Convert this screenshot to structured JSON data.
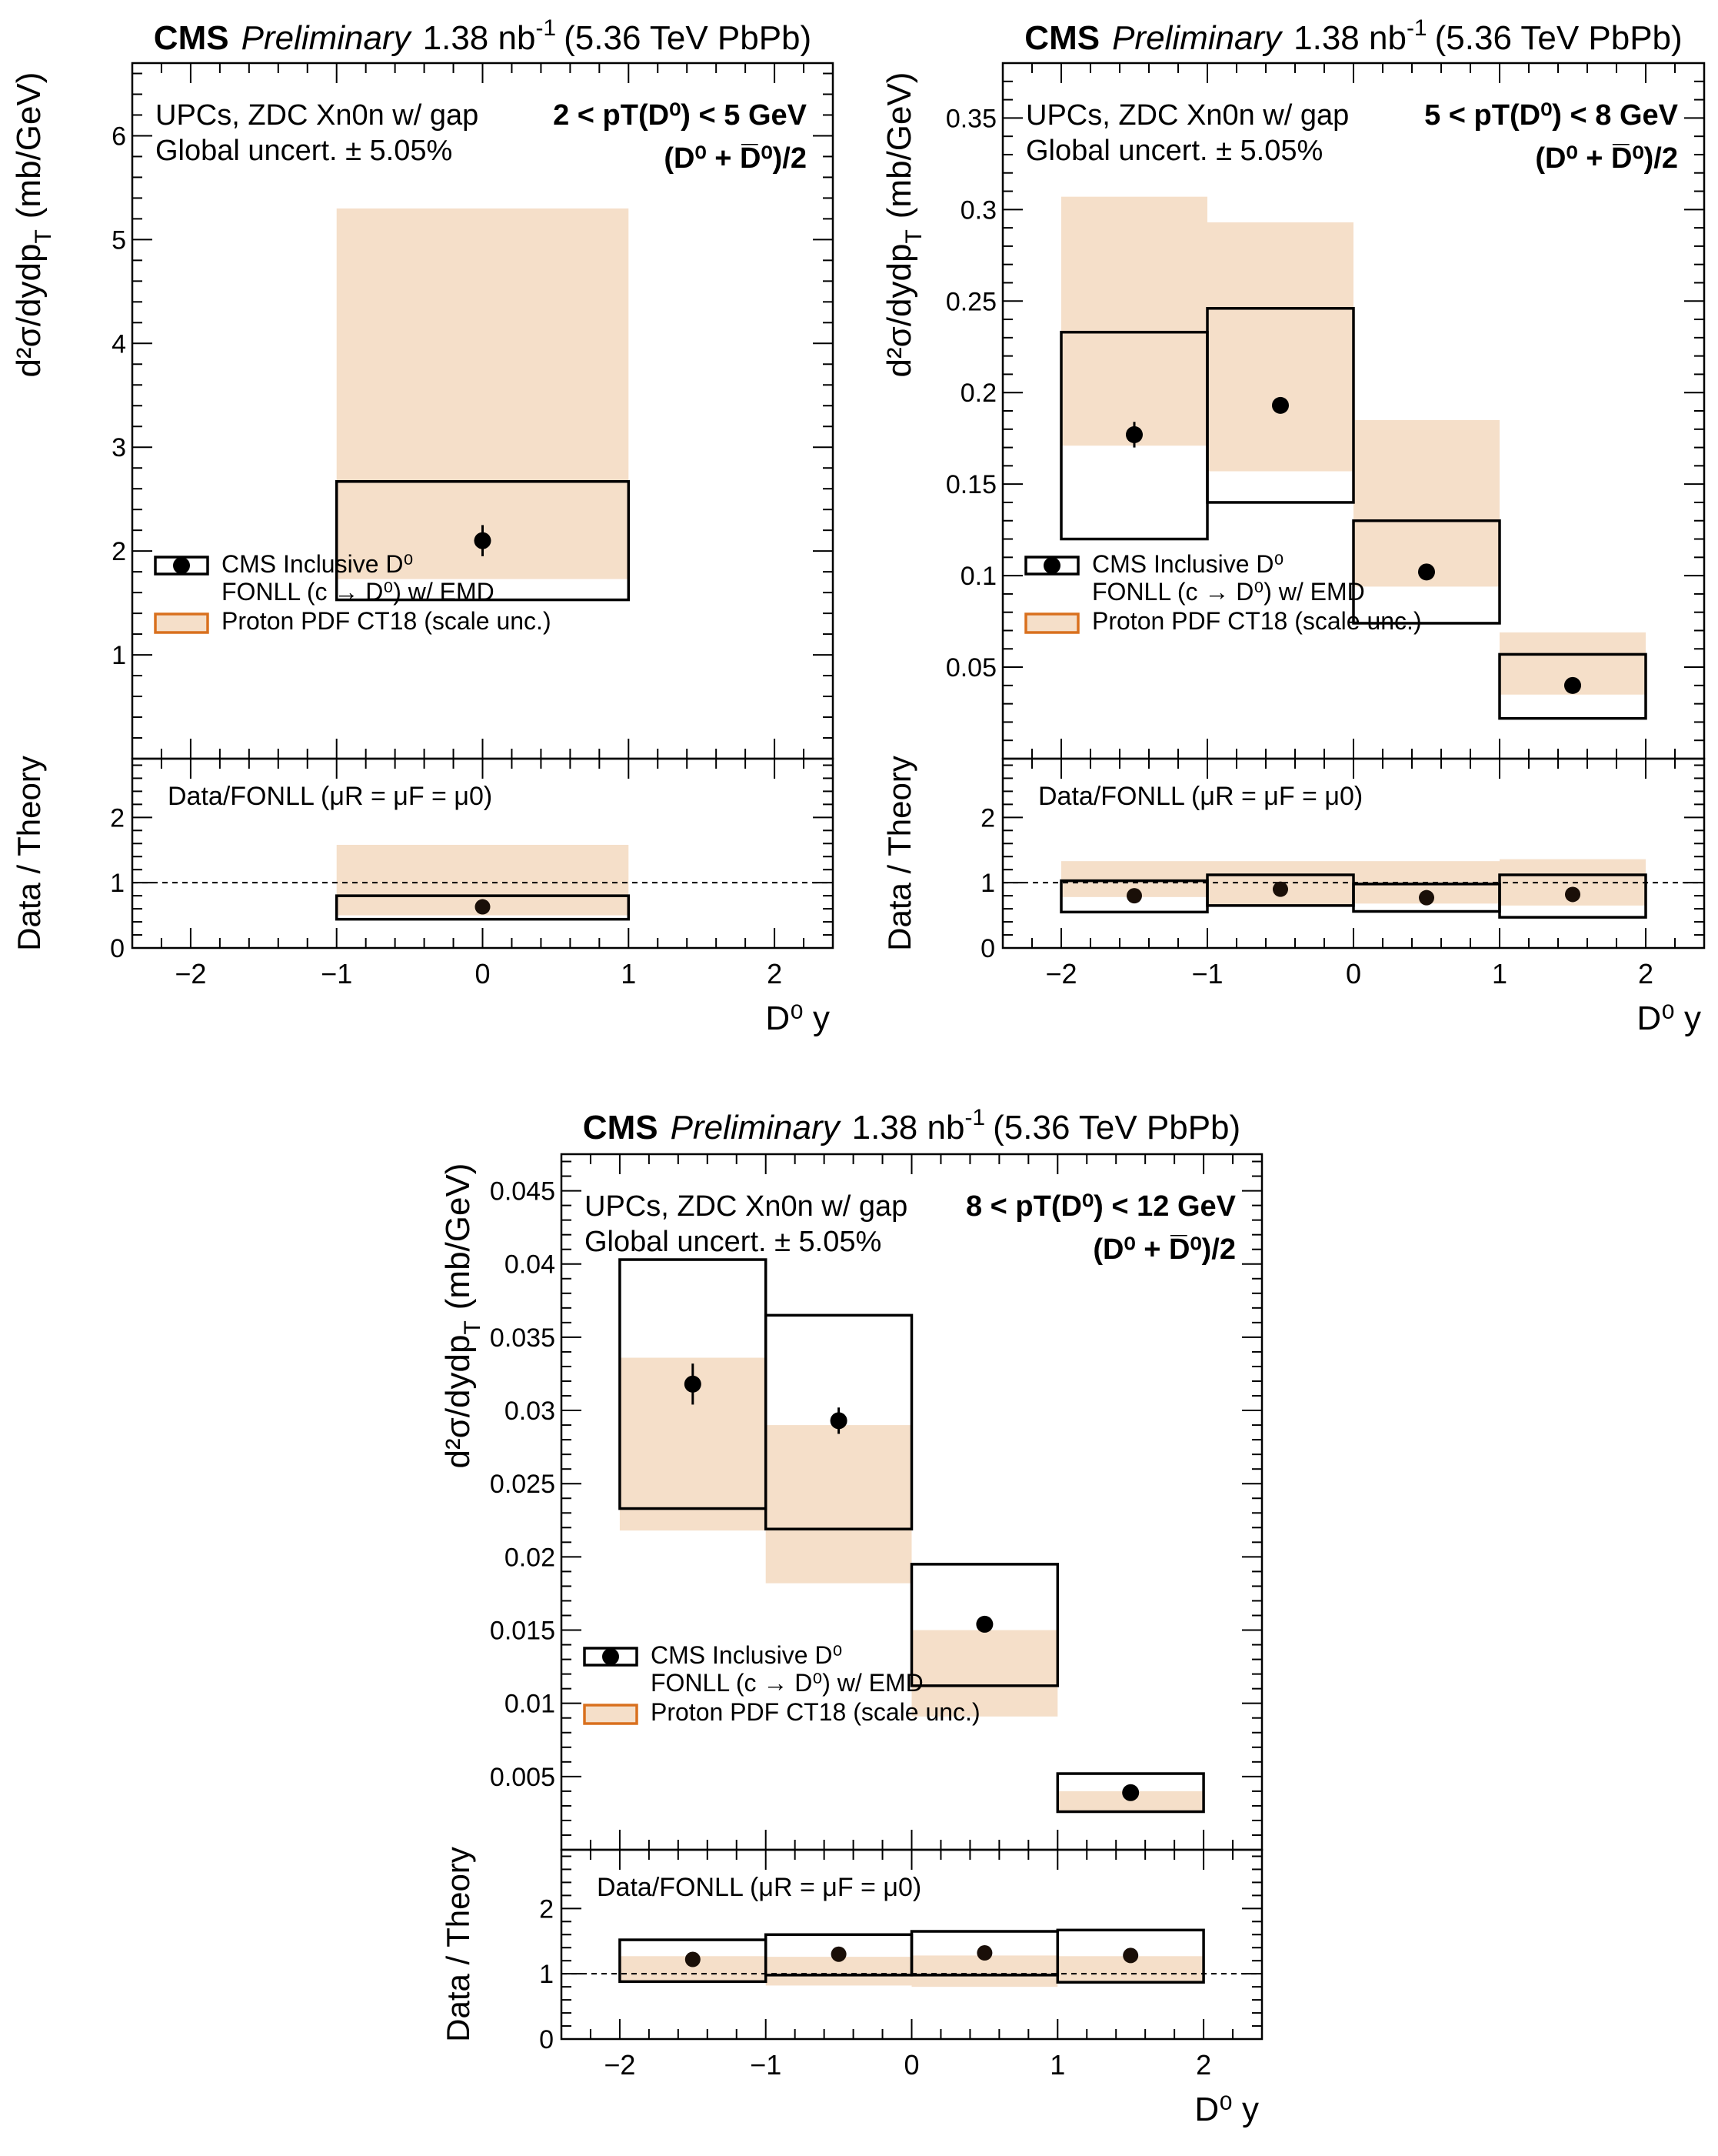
{
  "header": {
    "cms": "CMS",
    "preliminary": "Preliminary",
    "lumi": "1.38 nb",
    "lumi_exp": "-1",
    "energy": "(5.36 TeV PbPb)"
  },
  "common": {
    "info_line1": "UPCs, ZDC Xn0n w/ gap",
    "info_line2": "Global uncert. ± 5.05%",
    "species": "(D⁰ + D̅⁰)/2",
    "ylabel_top": "d²σ/dydp",
    "ylabel_top_sub": "T",
    "ylabel_top_unit": "(mb/GeV)",
    "ylabel_ratio": "Data / Theory",
    "xlabel": "D⁰ y",
    "ratio_label": "Data/FONLL (μR = μF = μ0)",
    "legend": {
      "data": "CMS Inclusive D⁰",
      "fonll": "FONLL (c → D⁰) w/ EMD",
      "pdf": "Proton PDF CT18 (scale unc.)"
    },
    "colors": {
      "band": "#f5dfc9",
      "band_edge": "#d9701e",
      "box": "#000000",
      "marker": "#000000"
    }
  },
  "chart_data": [
    {
      "type": "scatter",
      "pt_label": "2 < pT(D⁰) < 5 GeV",
      "xlim": [
        -2.4,
        2.4
      ],
      "xticks": [
        -2,
        -1,
        0,
        1,
        2
      ],
      "ylim": [
        0,
        6.7
      ],
      "yticks": [
        1,
        2,
        3,
        4,
        5,
        6
      ],
      "ratio_ylim": [
        0,
        2.9
      ],
      "ratio_yticks": [
        0,
        1,
        2
      ],
      "bins": [
        {
          "xlo": -1,
          "xhi": 1,
          "x": 0,
          "y": 2.1,
          "yerr": 0.15,
          "box": [
            1.53,
            2.67
          ],
          "band": [
            1.73,
            5.3
          ],
          "ratio": 0.63,
          "ratio_box": [
            0.44,
            0.8
          ],
          "ratio_band": [
            0.5,
            1.58
          ]
        }
      ]
    },
    {
      "type": "scatter",
      "pt_label": "5 < pT(D⁰) < 8 GeV",
      "xlim": [
        -2.4,
        2.4
      ],
      "xticks": [
        -2,
        -1,
        0,
        1,
        2
      ],
      "ylim": [
        0,
        0.38
      ],
      "yticks": [
        0.05,
        0.1,
        0.15,
        0.2,
        0.25,
        0.3,
        0.35
      ],
      "ratio_ylim": [
        0,
        2.9
      ],
      "ratio_yticks": [
        0,
        1,
        2
      ],
      "bins": [
        {
          "xlo": -2,
          "xhi": -1,
          "x": -1.5,
          "y": 0.177,
          "yerr": 0.007,
          "box": [
            0.12,
            0.233
          ],
          "band": [
            0.171,
            0.307
          ],
          "ratio": 0.8,
          "ratio_box": [
            0.55,
            1.03
          ],
          "ratio_band": [
            0.78,
            1.33
          ]
        },
        {
          "xlo": -1,
          "xhi": 0,
          "x": -0.5,
          "y": 0.193,
          "yerr": 0.004,
          "box": [
            0.14,
            0.246
          ],
          "band": [
            0.157,
            0.293
          ],
          "ratio": 0.9,
          "ratio_box": [
            0.65,
            1.12
          ],
          "ratio_band": [
            0.65,
            1.33
          ]
        },
        {
          "xlo": 0,
          "xhi": 1,
          "x": 0.5,
          "y": 0.102,
          "yerr": 0.002,
          "box": [
            0.074,
            0.13
          ],
          "band": [
            0.094,
            0.185
          ],
          "ratio": 0.77,
          "ratio_box": [
            0.56,
            0.98
          ],
          "ratio_band": [
            0.68,
            1.33
          ]
        },
        {
          "xlo": 1,
          "xhi": 2,
          "x": 1.5,
          "y": 0.04,
          "yerr": 0.001,
          "box": [
            0.022,
            0.057
          ],
          "band": [
            0.035,
            0.069
          ],
          "ratio": 0.82,
          "ratio_box": [
            0.47,
            1.12
          ],
          "ratio_band": [
            0.65,
            1.36
          ]
        }
      ]
    },
    {
      "type": "scatter",
      "pt_label": "8 < pT(D⁰) < 12 GeV",
      "xlim": [
        -2.4,
        2.4
      ],
      "xticks": [
        -2,
        -1,
        0,
        1,
        2
      ],
      "ylim": [
        0,
        0.0475
      ],
      "yticks": [
        0.005,
        0.01,
        0.015,
        0.02,
        0.025,
        0.03,
        0.035,
        0.04,
        0.045
      ],
      "ratio_ylim": [
        0,
        2.9
      ],
      "ratio_yticks": [
        0,
        1,
        2
      ],
      "bins": [
        {
          "xlo": -2,
          "xhi": -1,
          "x": -1.5,
          "y": 0.0318,
          "yerr": 0.0014,
          "box": [
            0.0233,
            0.0403
          ],
          "band": [
            0.0218,
            0.0336
          ],
          "ratio": 1.22,
          "ratio_box": [
            0.88,
            1.52
          ],
          "ratio_band": [
            0.88,
            1.27
          ]
        },
        {
          "xlo": -1,
          "xhi": 0,
          "x": -0.5,
          "y": 0.0293,
          "yerr": 0.0009,
          "box": [
            0.0219,
            0.0365
          ],
          "band": [
            0.0182,
            0.029
          ],
          "ratio": 1.3,
          "ratio_box": [
            0.98,
            1.6
          ],
          "ratio_band": [
            0.82,
            1.26
          ]
        },
        {
          "xlo": 0,
          "xhi": 1,
          "x": 0.5,
          "y": 0.0154,
          "yerr": 0.0005,
          "box": [
            0.0112,
            0.0195
          ],
          "band": [
            0.0091,
            0.015
          ],
          "ratio": 1.32,
          "ratio_box": [
            0.98,
            1.65
          ],
          "ratio_band": [
            0.8,
            1.28
          ]
        },
        {
          "xlo": 1,
          "xhi": 2,
          "x": 1.5,
          "y": 0.0039,
          "yerr": 0.0002,
          "box": [
            0.0026,
            0.0052
          ],
          "band": [
            0.0026,
            0.004
          ],
          "ratio": 1.28,
          "ratio_box": [
            0.87,
            1.67
          ],
          "ratio_band": [
            0.85,
            1.27
          ]
        }
      ]
    }
  ]
}
